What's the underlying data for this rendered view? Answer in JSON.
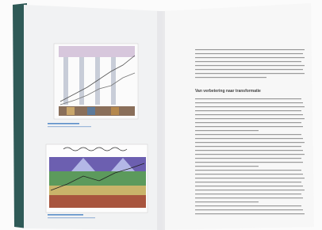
{
  "page": {
    "heading": "Van verbetering naar transformatie"
  }
}
